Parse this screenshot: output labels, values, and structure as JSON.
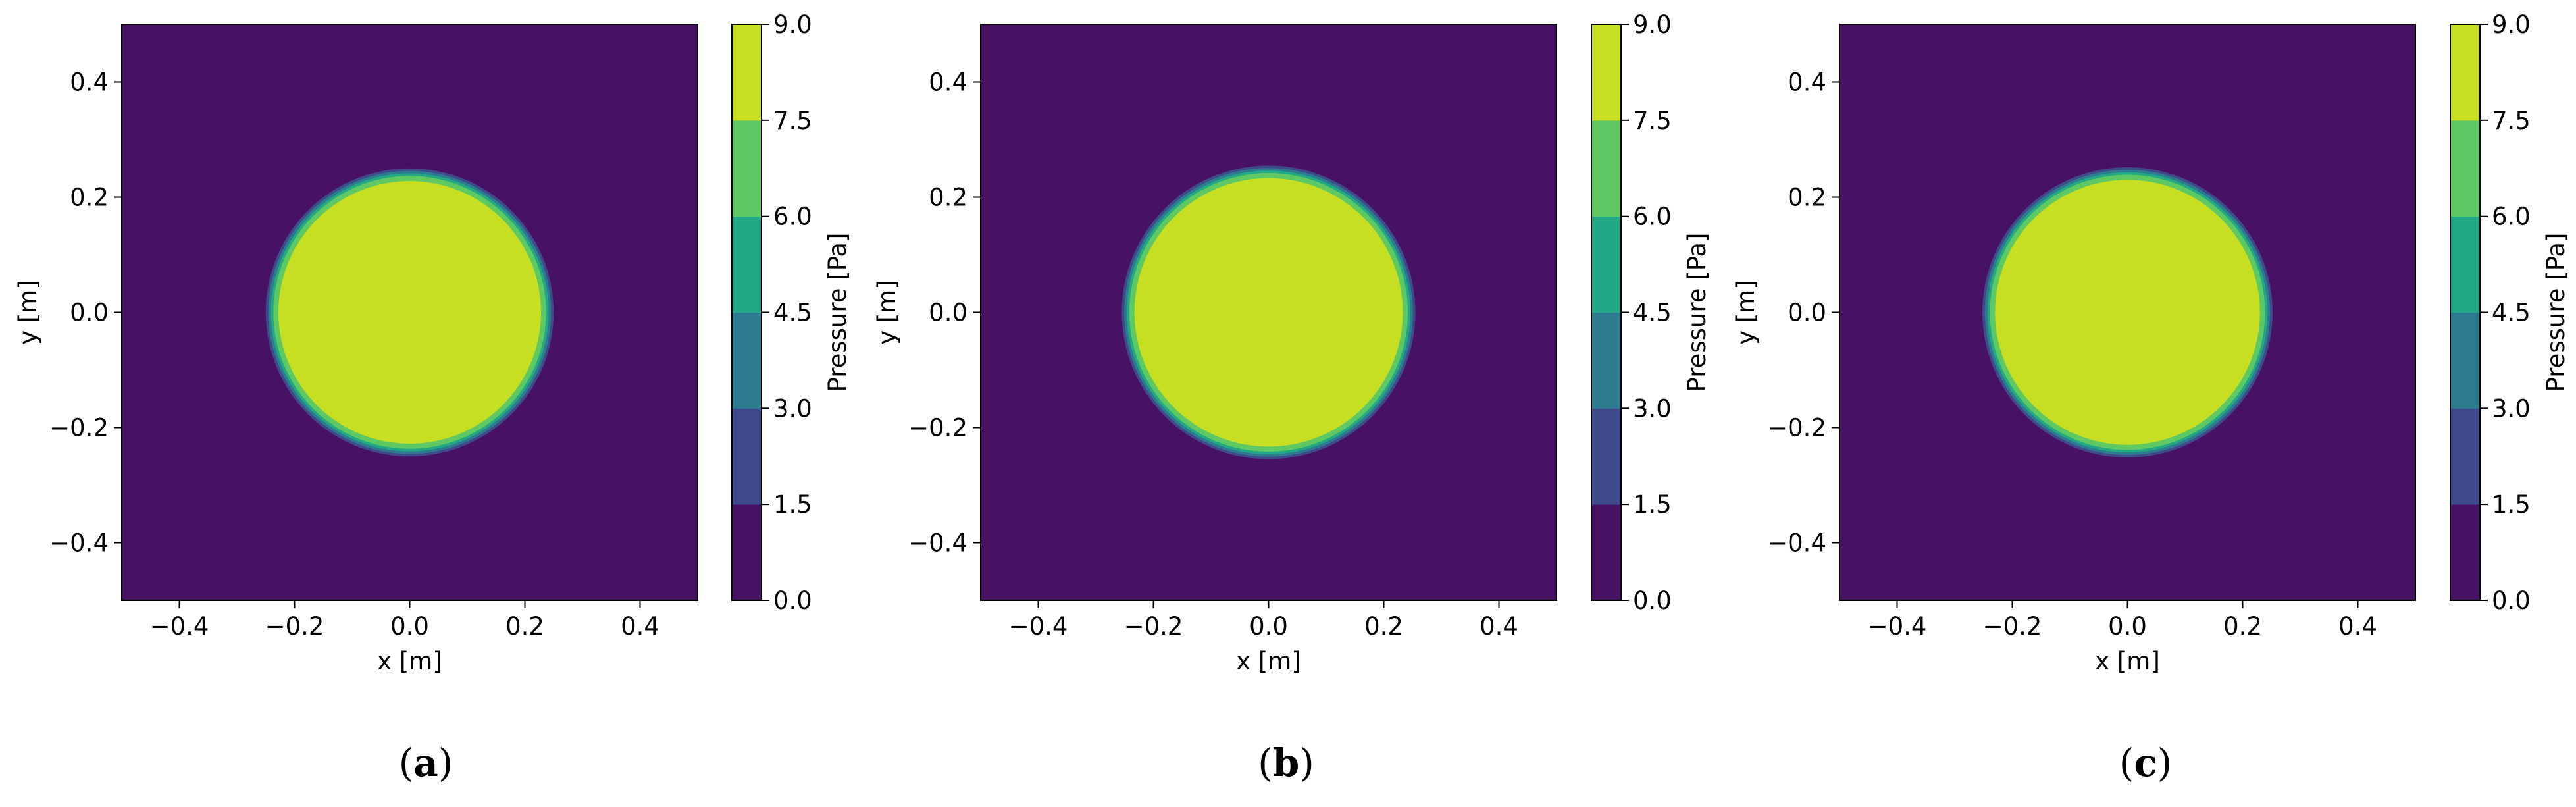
{
  "colors": {
    "levels": [
      "#471164",
      "#3e4a89",
      "#2d7b8e",
      "#22a884",
      "#5ec962",
      "#c7df22"
    ],
    "axis": "#000000"
  },
  "panels": [
    {
      "label_open": "(",
      "label_letter": "a",
      "label_close": ")"
    },
    {
      "label_open": "(",
      "label_letter": "b",
      "label_close": ")"
    },
    {
      "label_open": "(",
      "label_letter": "c",
      "label_close": ")"
    }
  ],
  "chart_data": [
    {
      "type": "heatmap",
      "subtype": "filled contour",
      "title": "",
      "xlabel": "x [m]",
      "ylabel": "y [m]",
      "xlim": [
        -0.5,
        0.5
      ],
      "ylim": [
        -0.5,
        0.5
      ],
      "xticks": [
        -0.4,
        -0.2,
        0.0,
        0.2,
        0.4
      ],
      "yticks": [
        -0.4,
        -0.2,
        0.0,
        0.2,
        0.4
      ],
      "xtick_labels": [
        "−0.4",
        "−0.2",
        "0.0",
        "0.2",
        "0.4"
      ],
      "ytick_labels": [
        "−0.4",
        "−0.2",
        "0.0",
        "0.2",
        "0.4"
      ],
      "colorbar_label": "Pressure [Pa]",
      "colorbar_levels": [
        0.0,
        1.5,
        3.0,
        4.5,
        6.0,
        7.5,
        9.0
      ],
      "colorbar_tick_labels": [
        "0.0",
        "1.5",
        "3.0",
        "4.5",
        "6.0",
        "7.5",
        "9.0"
      ],
      "field": {
        "shape": "circle",
        "center": [
          0.0,
          0.0
        ],
        "radius_inner": 0.228,
        "radius_outer": 0.25,
        "inside_value": 8.0,
        "outside_value": 0.5
      }
    },
    {
      "type": "heatmap",
      "subtype": "filled contour",
      "title": "",
      "xlabel": "x [m]",
      "ylabel": "y [m]",
      "xlim": [
        -0.5,
        0.5
      ],
      "ylim": [
        -0.5,
        0.5
      ],
      "xticks": [
        -0.4,
        -0.2,
        0.0,
        0.2,
        0.4
      ],
      "yticks": [
        -0.4,
        -0.2,
        0.0,
        0.2,
        0.4
      ],
      "xtick_labels": [
        "−0.4",
        "−0.2",
        "0.0",
        "0.2",
        "0.4"
      ],
      "ytick_labels": [
        "−0.4",
        "−0.2",
        "0.0",
        "0.2",
        "0.4"
      ],
      "colorbar_label": "Pressure [Pa]",
      "colorbar_levels": [
        0.0,
        1.5,
        3.0,
        4.5,
        6.0,
        7.5,
        9.0
      ],
      "colorbar_tick_labels": [
        "0.0",
        "1.5",
        "3.0",
        "4.5",
        "6.0",
        "7.5",
        "9.0"
      ],
      "field": {
        "shape": "circle",
        "center": [
          0.0,
          0.0
        ],
        "radius_inner": 0.233,
        "radius_outer": 0.255,
        "inside_value": 8.0,
        "outside_value": 0.5
      }
    },
    {
      "type": "heatmap",
      "subtype": "filled contour",
      "title": "",
      "xlabel": "x [m]",
      "ylabel": "y [m]",
      "xlim": [
        -0.5,
        0.5
      ],
      "ylim": [
        -0.5,
        0.5
      ],
      "xticks": [
        -0.4,
        -0.2,
        0.0,
        0.2,
        0.4
      ],
      "yticks": [
        -0.4,
        -0.2,
        0.0,
        0.2,
        0.4
      ],
      "xtick_labels": [
        "−0.4",
        "−0.2",
        "0.0",
        "0.2",
        "0.4"
      ],
      "ytick_labels": [
        "−0.4",
        "−0.2",
        "0.0",
        "0.2",
        "0.4"
      ],
      "colorbar_label": "Pressure [Pa]",
      "colorbar_levels": [
        0.0,
        1.5,
        3.0,
        4.5,
        6.0,
        7.5,
        9.0
      ],
      "colorbar_tick_labels": [
        "0.0",
        "1.5",
        "3.0",
        "4.5",
        "6.0",
        "7.5",
        "9.0"
      ],
      "field": {
        "shape": "circle",
        "center": [
          0.0,
          0.0
        ],
        "radius_inner": 0.23,
        "radius_outer": 0.252,
        "inside_value": 8.0,
        "outside_value": 0.5
      }
    }
  ]
}
